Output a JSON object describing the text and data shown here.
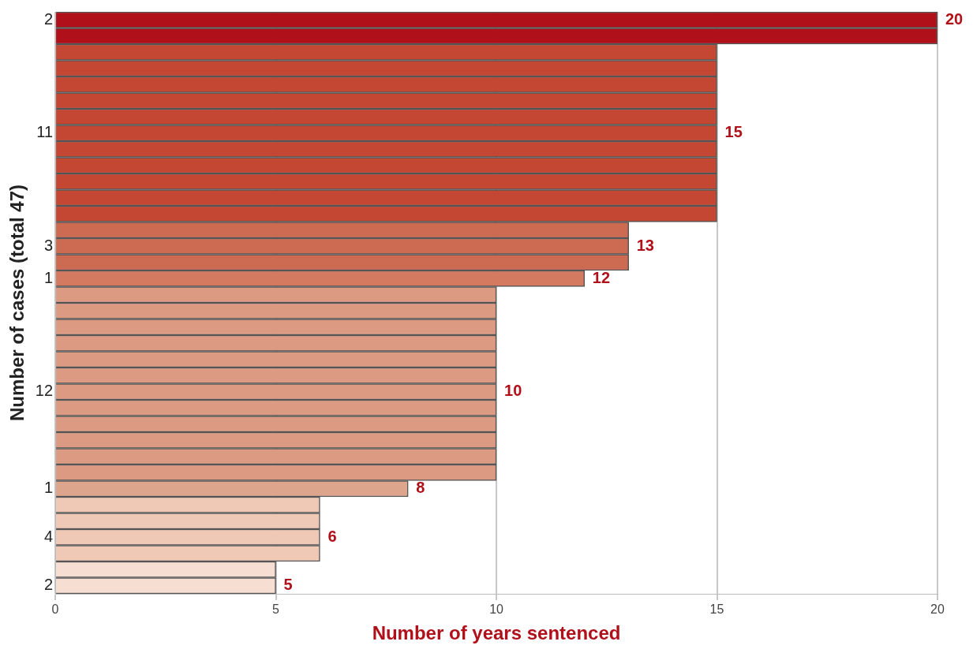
{
  "chart_data": {
    "type": "bar",
    "orientation": "horizontal",
    "xlabel": "Number of years sentenced",
    "ylabel": "Number of cases (total 47)",
    "categories": [
      "2",
      null,
      null,
      null,
      null,
      null,
      null,
      "11",
      null,
      null,
      null,
      null,
      null,
      null,
      "3",
      null,
      "1",
      null,
      null,
      null,
      null,
      null,
      null,
      "12",
      null,
      null,
      null,
      null,
      null,
      "1",
      null,
      null,
      "4",
      null,
      null,
      "2"
    ],
    "values": [
      20,
      20,
      15,
      15,
      15,
      15,
      15,
      15,
      15,
      15,
      15,
      15,
      15,
      13,
      13,
      13,
      12,
      10,
      10,
      10,
      10,
      10,
      10,
      10,
      10,
      10,
      10,
      10,
      10,
      8,
      6,
      6,
      6,
      6,
      5,
      5
    ],
    "colors": [
      "#b0101a",
      "#b0101a",
      "#c44733",
      "#c44733",
      "#c44733",
      "#c44733",
      "#c44733",
      "#c44733",
      "#c44733",
      "#c44733",
      "#c44733",
      "#c44733",
      "#c44733",
      "#cd6a52",
      "#cd6a52",
      "#cd6a52",
      "#d47a60",
      "#dc9a82",
      "#dc9a82",
      "#dc9a82",
      "#dc9a82",
      "#dc9a82",
      "#dc9a82",
      "#dc9a82",
      "#dc9a82",
      "#dc9a82",
      "#dc9a82",
      "#dc9a82",
      "#dc9a82",
      "#dea58d",
      "#efc8b6",
      "#efc8b6",
      "#efc8b6",
      "#efc8b6",
      "#f6ded3",
      "#f6ded3"
    ],
    "value_labels": [
      "20",
      null,
      null,
      null,
      null,
      null,
      null,
      "15",
      null,
      null,
      null,
      null,
      null,
      null,
      "13",
      null,
      "12",
      null,
      null,
      null,
      null,
      null,
      null,
      "10",
      null,
      null,
      null,
      null,
      null,
      "8",
      null,
      null,
      "6",
      null,
      null,
      "5"
    ],
    "xlim": [
      0,
      20
    ],
    "xticks": [
      0,
      5,
      10,
      15,
      20
    ],
    "grid": "x",
    "legend": false
  }
}
